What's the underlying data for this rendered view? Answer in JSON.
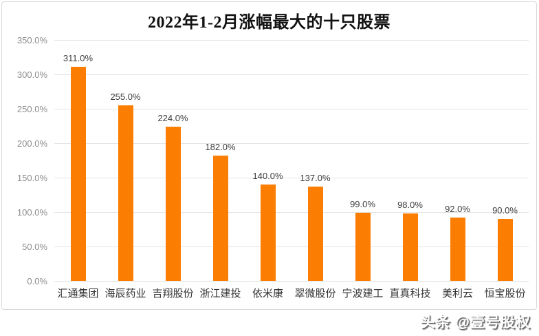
{
  "watermark": "头条 @壹号股权",
  "colors": {
    "bar": "#fb7d02",
    "grid": "#e3e3e3",
    "axis_text": "#8c8c8c",
    "value_text": "#3c3c3c",
    "category_text": "#333333",
    "border": "#d9d9d9",
    "title_text": "#111111"
  },
  "chart_data": {
    "type": "bar",
    "title": "2022年1-2月涨幅最大的十只股票",
    "categories": [
      "汇通集团",
      "海辰药业",
      "吉翔股份",
      "浙江建投",
      "依米康",
      "翠微股份",
      "宁波建工",
      "直真科技",
      "美利云",
      "恒宝股份"
    ],
    "values": [
      311,
      255,
      224,
      182,
      140,
      137,
      99,
      98,
      92,
      90
    ],
    "value_labels": [
      "311.0%",
      "255.0%",
      "224.0%",
      "182.0%",
      "140.0%",
      "137.0%",
      "99.0%",
      "98.0%",
      "92.0%",
      "90.0%"
    ],
    "xlabel": "",
    "ylabel": "",
    "ylim": [
      0,
      350
    ],
    "ytick_step": 50,
    "ytick_labels": [
      "0.0%",
      "50.0%",
      "100.0%",
      "150.0%",
      "200.0%",
      "250.0%",
      "300.0%",
      "350.0%"
    ],
    "grid": true,
    "legend": false
  }
}
